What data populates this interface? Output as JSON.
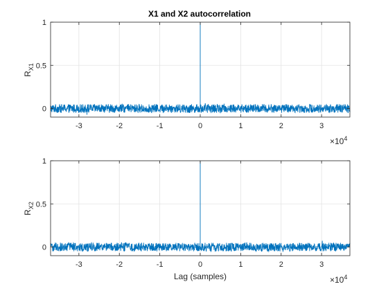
{
  "chart_data": [
    {
      "type": "line",
      "title": "X1 and X2 autocorrelation",
      "ylabel": "R",
      "ylabel_sub": "X1",
      "xlabel": "",
      "xlim": [
        -37000,
        37000
      ],
      "ylim": [
        -0.1,
        1
      ],
      "xticks": [
        -3,
        -2,
        -1,
        0,
        1,
        2,
        3
      ],
      "yticks": [
        0,
        0.5,
        1
      ],
      "ytick_labels": [
        "0",
        "0.5",
        "1"
      ],
      "x_exponent_base": "×10",
      "x_exponent_power": "4",
      "grid": true,
      "line_color": "#0072BD",
      "series": [
        {
          "description": "Autocorrelation of X1: a unit peak at zero lag and low-amplitude noise elsewhere",
          "peak": {
            "x": 0,
            "y": 1
          },
          "noise_mean": 0.0,
          "noise_amplitude": 0.05,
          "n_points": 1400
        }
      ]
    },
    {
      "type": "line",
      "title": "",
      "ylabel": "R",
      "ylabel_sub": "X2",
      "xlabel": "Lag (samples)",
      "xlim": [
        -37000,
        37000
      ],
      "ylim": [
        -0.1,
        1
      ],
      "xticks": [
        -3,
        -2,
        -1,
        0,
        1,
        2,
        3
      ],
      "yticks": [
        0,
        0.5,
        1
      ],
      "ytick_labels": [
        "0",
        "0.5",
        "1"
      ],
      "x_exponent_base": "×10",
      "x_exponent_power": "4",
      "grid": true,
      "line_color": "#0072BD",
      "series": [
        {
          "description": "Autocorrelation of X2: a unit peak at zero lag and low-amplitude noise elsewhere",
          "peak": {
            "x": 0,
            "y": 1
          },
          "noise_mean": 0.0,
          "noise_amplitude": 0.05,
          "n_points": 1400
        }
      ]
    }
  ]
}
